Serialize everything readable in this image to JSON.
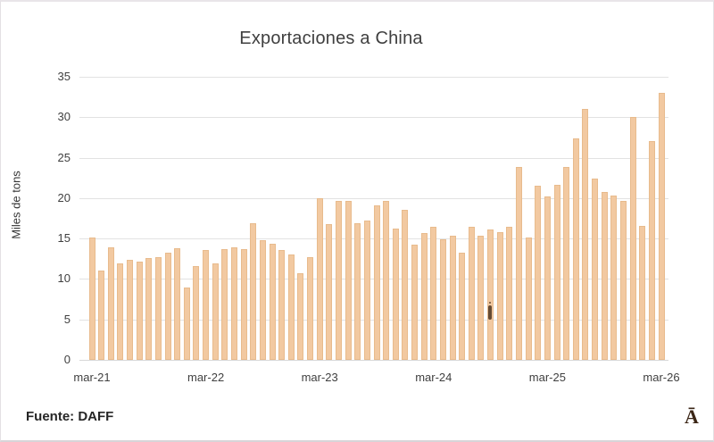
{
  "window": {
    "background": "#ffffff",
    "border_color": "#e4e0e4"
  },
  "chart_data": {
    "type": "bar",
    "title": "Exportaciones a China",
    "xlabel": "",
    "ylabel": "Miles de tons",
    "ylim": [
      0,
      35
    ],
    "yticks": [
      0,
      5,
      10,
      15,
      20,
      25,
      30,
      35
    ],
    "grid": "horizontal",
    "legend": "none",
    "bar_color": "#f2c9a1",
    "gridline_color": "#e2e2e2",
    "xtick_labels": [
      "mar-21",
      "mar-22",
      "mar-23",
      "mar-24",
      "mar-25",
      "mar-26"
    ],
    "xtick_every_n_bars": 12,
    "categories": [
      "mar-21",
      "abr-21",
      "may-21",
      "jun-21",
      "jul-21",
      "ago-21",
      "sep-21",
      "oct-21",
      "nov-21",
      "dic-21",
      "ene-22",
      "feb-22",
      "mar-22",
      "abr-22",
      "may-22",
      "jun-22",
      "jul-22",
      "ago-22",
      "sep-22",
      "oct-22",
      "nov-22",
      "dic-22",
      "ene-23",
      "feb-23",
      "mar-23",
      "abr-23",
      "may-23",
      "jun-23",
      "jul-23",
      "ago-23",
      "sep-23",
      "oct-23",
      "nov-23",
      "dic-23",
      "ene-24",
      "feb-24",
      "mar-24",
      "abr-24",
      "may-24",
      "jun-24",
      "jul-24",
      "ago-24",
      "sep-24",
      "oct-24",
      "nov-24",
      "dic-24",
      "ene-25",
      "feb-25",
      "mar-25",
      "abr-25",
      "may-25",
      "jun-25",
      "jul-25",
      "ago-25",
      "sep-25",
      "oct-25",
      "nov-25",
      "dic-25",
      "ene-26",
      "feb-26",
      "mar-26"
    ],
    "values": [
      15.1,
      11.0,
      13.9,
      11.9,
      12.4,
      12.1,
      12.6,
      12.7,
      13.2,
      13.8,
      8.9,
      11.6,
      13.6,
      11.9,
      13.7,
      13.9,
      13.7,
      16.9,
      14.8,
      14.4,
      13.6,
      13.0,
      10.7,
      12.7,
      20.0,
      16.8,
      19.6,
      19.6,
      16.9,
      17.2,
      19.1,
      19.7,
      16.2,
      18.5,
      14.2,
      15.7,
      16.5,
      14.9,
      15.4,
      13.2,
      16.4,
      15.3,
      16.1,
      15.8,
      16.4,
      23.8,
      15.1,
      21.5,
      20.2,
      21.6,
      23.9,
      27.4,
      31.0,
      22.4,
      20.8,
      20.3,
      19.6,
      30.0,
      16.6,
      27.1,
      33.0
    ]
  },
  "footer": {
    "source_label": "Fuente: DAFF"
  },
  "branding": {
    "logo_glyph": "Ā",
    "logo_color": "#3b2616"
  }
}
